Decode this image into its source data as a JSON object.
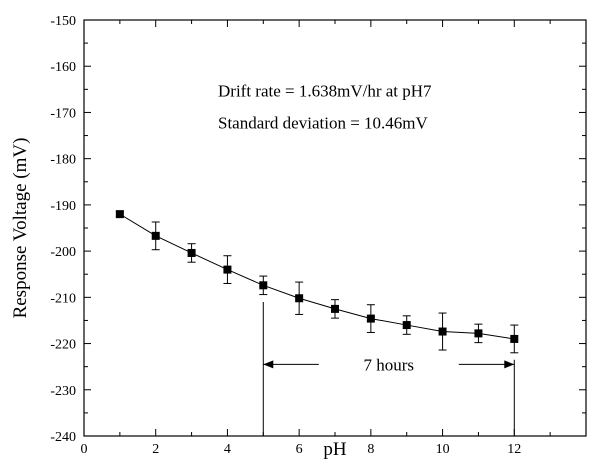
{
  "chart_data": {
    "type": "scatter",
    "xlabel": "pH",
    "ylabel": "Response  Voltage (mV)",
    "xlim": [
      0,
      14
    ],
    "ylim": [
      -240,
      -150
    ],
    "xticks": [
      0,
      2,
      4,
      6,
      8,
      10,
      12
    ],
    "yticks": [
      -240,
      -230,
      -220,
      -210,
      -200,
      -190,
      -180,
      -170,
      -160,
      -150
    ],
    "grid": false,
    "legend": "none",
    "series": [
      {
        "marker": "square",
        "line": "solid",
        "color": "#000000",
        "x": [
          1,
          2,
          3,
          4,
          5,
          6,
          7,
          8,
          9,
          10,
          11,
          12
        ],
        "y": [
          -192.0,
          -196.7,
          -200.4,
          -204.0,
          -207.4,
          -210.2,
          -212.5,
          -214.6,
          -216.0,
          -217.4,
          -217.8,
          -219.0
        ],
        "err": [
          0.5,
          3.0,
          2.0,
          3.0,
          2.0,
          3.5,
          2.0,
          3.0,
          2.0,
          4.0,
          2.0,
          3.0
        ]
      }
    ],
    "annotations": {
      "line1": "Drift rate = 1.638mV/hr at pH7",
      "line2": "Standard deviation = 10.46mV",
      "span_label": "7 hours",
      "span_start_x": 5,
      "span_end_x": 12
    }
  }
}
